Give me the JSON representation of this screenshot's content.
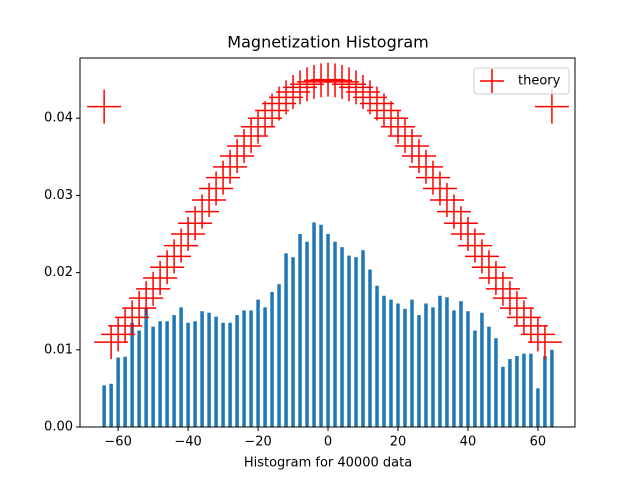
{
  "chart_data": {
    "type": "bar",
    "title": "Magnetization Histogram",
    "x_label": "Histogram for 40000 data",
    "x": [
      -64,
      -62,
      -60,
      -58,
      -56,
      -54,
      -52,
      -50,
      -48,
      -46,
      -44,
      -42,
      -40,
      -38,
      -36,
      -34,
      -32,
      -30,
      -28,
      -26,
      -24,
      -22,
      -20,
      -18,
      -16,
      -14,
      -12,
      -10,
      -8,
      -6,
      -4,
      -2,
      0,
      2,
      4,
      6,
      8,
      10,
      12,
      14,
      16,
      18,
      20,
      22,
      24,
      26,
      28,
      30,
      32,
      34,
      36,
      38,
      40,
      42,
      44,
      46,
      48,
      50,
      52,
      54,
      56,
      58,
      60,
      62,
      64
    ],
    "values": [
      0.0054,
      0.0056,
      0.009,
      0.0091,
      0.0135,
      0.0125,
      0.0155,
      0.013,
      0.0137,
      0.0137,
      0.0145,
      0.0155,
      0.0135,
      0.0137,
      0.015,
      0.0148,
      0.0143,
      0.0135,
      0.0135,
      0.0145,
      0.0151,
      0.0151,
      0.0165,
      0.0155,
      0.0175,
      0.0185,
      0.0225,
      0.022,
      0.025,
      0.024,
      0.0265,
      0.0262,
      0.025,
      0.024,
      0.0233,
      0.0222,
      0.022,
      0.0229,
      0.0204,
      0.0183,
      0.017,
      0.0165,
      0.016,
      0.0153,
      0.0165,
      0.0145,
      0.016,
      0.0155,
      0.017,
      0.0168,
      0.0151,
      0.0163,
      0.015,
      0.0125,
      0.0148,
      0.013,
      0.0115,
      0.0078,
      0.0088,
      0.0092,
      0.0095,
      0.0095,
      0.005,
      0.0092,
      0.01
    ],
    "color": "#1f77b4",
    "overlay": {
      "type": "scatter",
      "name": "theory",
      "marker": "+",
      "color": "#ff0000",
      "x": [
        -64,
        -62,
        -60,
        -58,
        -56,
        -54,
        -52,
        -50,
        -48,
        -46,
        -44,
        -42,
        -40,
        -38,
        -36,
        -34,
        -32,
        -30,
        -28,
        -26,
        -24,
        -22,
        -20,
        -18,
        -16,
        -14,
        -12,
        -10,
        -8,
        -6,
        -4,
        -2,
        0,
        2,
        4,
        6,
        8,
        10,
        12,
        14,
        16,
        18,
        20,
        22,
        24,
        26,
        28,
        30,
        32,
        34,
        36,
        38,
        40,
        42,
        44,
        46,
        48,
        50,
        52,
        54,
        56,
        58,
        60,
        62,
        64
      ],
      "values": [
        0.0415,
        0.011,
        0.012,
        0.0131,
        0.0142,
        0.0154,
        0.0167,
        0.0179,
        0.0193,
        0.0207,
        0.0221,
        0.0235,
        0.025,
        0.0264,
        0.0279,
        0.0294,
        0.0309,
        0.0323,
        0.0337,
        0.0351,
        0.0364,
        0.0377,
        0.0389,
        0.04,
        0.041,
        0.0419,
        0.0427,
        0.0434,
        0.044,
        0.0444,
        0.0447,
        0.0449,
        0.045,
        0.0449,
        0.0447,
        0.0444,
        0.044,
        0.0434,
        0.0427,
        0.0419,
        0.041,
        0.04,
        0.0389,
        0.0377,
        0.0364,
        0.0351,
        0.0337,
        0.0323,
        0.0309,
        0.0294,
        0.0279,
        0.0264,
        0.025,
        0.0235,
        0.0221,
        0.0207,
        0.0193,
        0.0179,
        0.0167,
        0.0154,
        0.0142,
        0.0131,
        0.012,
        0.011,
        0.0415
      ]
    },
    "xlim": [
      -70.9,
      70.6
    ],
    "ylim": [
      0,
      0.0478
    ],
    "xticks": [
      {
        "value": -60,
        "label": "−60"
      },
      {
        "value": -40,
        "label": "−40"
      },
      {
        "value": -20,
        "label": "−20"
      },
      0,
      20,
      40,
      60
    ],
    "yticks": [
      {
        "value": 0,
        "label": "0.00"
      },
      {
        "value": 0.01,
        "label": "0.01"
      },
      {
        "value": 0.02,
        "label": "0.02"
      },
      {
        "value": 0.03,
        "label": "0.03"
      },
      {
        "value": 0.04,
        "label": "0.04"
      }
    ],
    "legend": "upper right"
  }
}
